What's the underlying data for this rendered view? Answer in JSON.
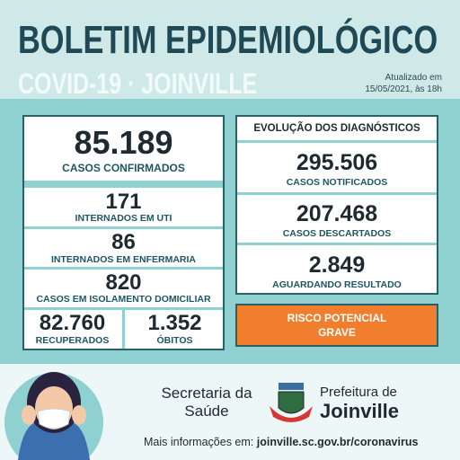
{
  "header": {
    "title": "BOLETIM EPIDEMIOLÓGICO",
    "subtitle": "COVID-19 · JOINVILLE",
    "updated": "Atualizado em",
    "updated_date": "15/05/2021, às 18h"
  },
  "left": [
    {
      "value": "85.189",
      "label": "CASOS CONFIRMADOS"
    },
    {
      "value": "171",
      "label": "INTERNADOS EM UTI"
    },
    {
      "value": "86",
      "label": "INTERNADOS EM ENFERMARIA"
    },
    {
      "value": "820",
      "label": "CASOS EM ISOLAMENTO DOMICILIAR"
    },
    {
      "value": "82.760",
      "label": "RECUPERADOS"
    },
    {
      "value": "1.352",
      "label": "ÓBITOS"
    }
  ],
  "right": {
    "heading": "EVOLUÇÃO DOS DIAGNÓSTICOS",
    "items": [
      {
        "value": "295.506",
        "label": "CASOS NOTIFICADOS"
      },
      {
        "value": "207.468",
        "label": "CASOS DESCARTADOS"
      },
      {
        "value": "2.849",
        "label": "AGUARDANDO RESULTADO"
      }
    ]
  },
  "risk": [
    "RISCO POTENCIAL",
    "GRAVE"
  ],
  "footer": {
    "secretaria": [
      "Secretaria da",
      "Saúde"
    ],
    "prefeitura": [
      "Prefeitura de",
      "Joinville"
    ],
    "more_info": "Mais informações em:",
    "url": "joinville.sc.gov.br/coronavirus"
  }
}
